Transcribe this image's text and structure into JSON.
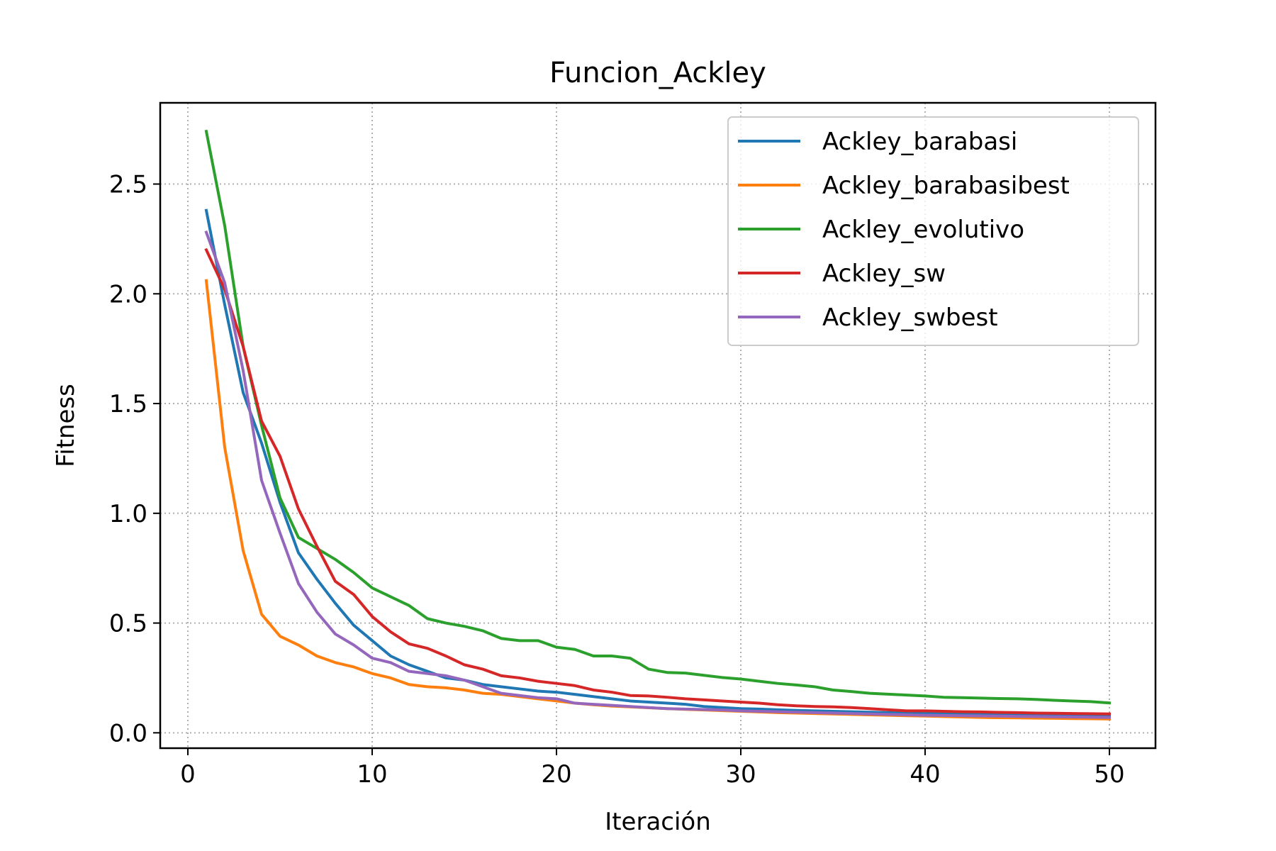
{
  "chart_data": {
    "type": "line",
    "title": "Funcion_Ackley",
    "xlabel": "Iteración",
    "ylabel": "Fitness",
    "xlim": [
      -1.5,
      52.5
    ],
    "ylim": [
      -0.07,
      2.87
    ],
    "xticks": [
      0,
      10,
      20,
      30,
      40,
      50
    ],
    "xtick_labels": [
      "0",
      "10",
      "20",
      "30",
      "40",
      "50"
    ],
    "yticks": [
      0.0,
      0.5,
      1.0,
      1.5,
      2.0,
      2.5
    ],
    "ytick_labels": [
      "0.0",
      "0.5",
      "1.0",
      "1.5",
      "2.0",
      "2.5"
    ],
    "grid": true,
    "grid_style": "dotted",
    "legend_position": "top-right",
    "x": [
      1,
      2,
      3,
      4,
      5,
      6,
      7,
      8,
      9,
      10,
      11,
      12,
      13,
      14,
      15,
      16,
      17,
      18,
      19,
      20,
      21,
      22,
      23,
      24,
      25,
      26,
      27,
      28,
      29,
      30,
      31,
      32,
      33,
      34,
      35,
      36,
      37,
      38,
      39,
      40,
      41,
      42,
      43,
      44,
      45,
      46,
      47,
      48,
      49,
      50
    ],
    "series": [
      {
        "name": "Ackley_barabasi",
        "color": "#1f77b4",
        "values": [
          2.38,
          1.95,
          1.55,
          1.32,
          1.05,
          0.82,
          0.7,
          0.59,
          0.49,
          0.42,
          0.35,
          0.31,
          0.28,
          0.25,
          0.24,
          0.22,
          0.21,
          0.2,
          0.19,
          0.185,
          0.175,
          0.165,
          0.155,
          0.145,
          0.14,
          0.135,
          0.13,
          0.12,
          0.115,
          0.11,
          0.108,
          0.105,
          0.102,
          0.1,
          0.098,
          0.096,
          0.094,
          0.092,
          0.09,
          0.088,
          0.087,
          0.086,
          0.085,
          0.084,
          0.083,
          0.082,
          0.081,
          0.08,
          0.079,
          0.078
        ]
      },
      {
        "name": "Ackley_barabasibest",
        "color": "#ff7f0e",
        "values": [
          2.06,
          1.3,
          0.83,
          0.54,
          0.44,
          0.4,
          0.35,
          0.32,
          0.3,
          0.27,
          0.25,
          0.22,
          0.21,
          0.205,
          0.195,
          0.18,
          0.175,
          0.165,
          0.155,
          0.145,
          0.135,
          0.128,
          0.122,
          0.118,
          0.114,
          0.11,
          0.107,
          0.104,
          0.101,
          0.098,
          0.095,
          0.092,
          0.09,
          0.088,
          0.086,
          0.084,
          0.082,
          0.08,
          0.078,
          0.076,
          0.074,
          0.072,
          0.07,
          0.069,
          0.068,
          0.067,
          0.066,
          0.065,
          0.064,
          0.063
        ]
      },
      {
        "name": "Ackley_evolutivo",
        "color": "#2ca02c",
        "values": [
          2.74,
          2.31,
          1.76,
          1.4,
          1.07,
          0.89,
          0.84,
          0.79,
          0.73,
          0.66,
          0.62,
          0.58,
          0.52,
          0.5,
          0.485,
          0.465,
          0.43,
          0.42,
          0.42,
          0.39,
          0.38,
          0.35,
          0.35,
          0.34,
          0.29,
          0.275,
          0.272,
          0.262,
          0.252,
          0.245,
          0.235,
          0.225,
          0.218,
          0.21,
          0.195,
          0.188,
          0.18,
          0.176,
          0.172,
          0.168,
          0.162,
          0.16,
          0.158,
          0.156,
          0.155,
          0.152,
          0.148,
          0.145,
          0.142,
          0.136
        ]
      },
      {
        "name": "Ackley_sw",
        "color": "#d62728",
        "values": [
          2.2,
          2.02,
          1.76,
          1.42,
          1.26,
          1.02,
          0.85,
          0.69,
          0.63,
          0.53,
          0.46,
          0.405,
          0.385,
          0.35,
          0.31,
          0.29,
          0.26,
          0.25,
          0.235,
          0.225,
          0.215,
          0.195,
          0.185,
          0.17,
          0.168,
          0.162,
          0.155,
          0.15,
          0.145,
          0.14,
          0.135,
          0.128,
          0.123,
          0.12,
          0.118,
          0.115,
          0.11,
          0.105,
          0.1,
          0.1,
          0.098,
          0.096,
          0.095,
          0.093,
          0.092,
          0.09,
          0.089,
          0.088,
          0.087,
          0.086
        ]
      },
      {
        "name": "Ackley_swbest",
        "color": "#9467bd",
        "values": [
          2.28,
          2.05,
          1.65,
          1.15,
          0.91,
          0.68,
          0.55,
          0.45,
          0.4,
          0.34,
          0.32,
          0.28,
          0.27,
          0.26,
          0.24,
          0.21,
          0.18,
          0.17,
          0.16,
          0.155,
          0.135,
          0.13,
          0.125,
          0.12,
          0.115,
          0.11,
          0.108,
          0.106,
          0.104,
          0.1,
          0.098,
          0.096,
          0.094,
          0.092,
          0.09,
          0.088,
          0.086,
          0.084,
          0.082,
          0.08,
          0.079,
          0.078,
          0.077,
          0.076,
          0.075,
          0.074,
          0.073,
          0.072,
          0.071,
          0.07
        ]
      }
    ]
  }
}
